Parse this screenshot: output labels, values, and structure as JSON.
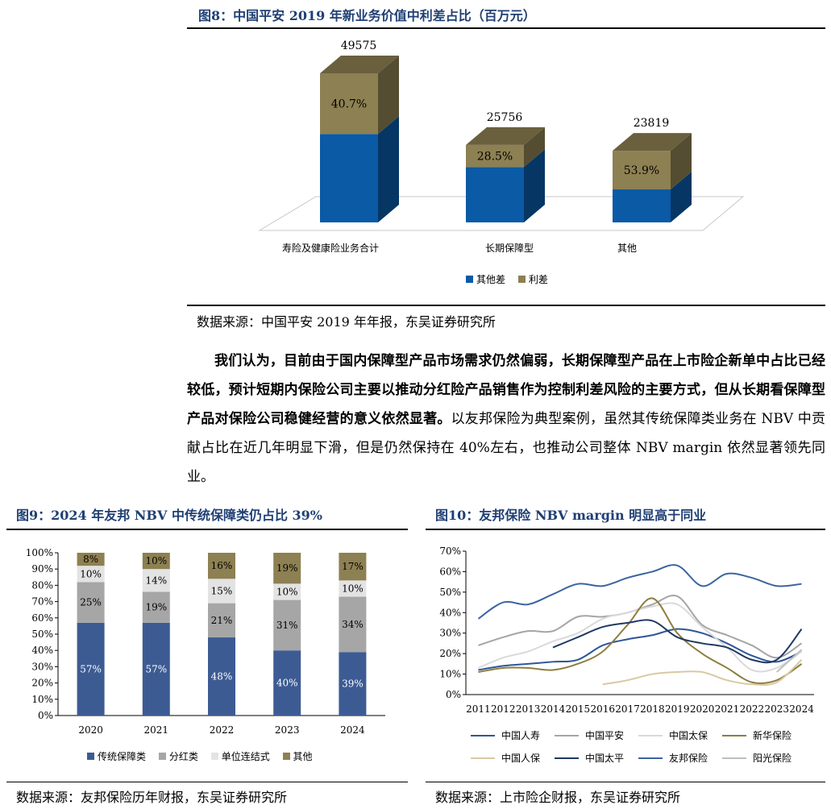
{
  "fig8": {
    "title": "图8：中国平安 2019 年新业务价值中利差占比（百万元）",
    "source": "数据来源：中国平安 2019 年年报，东吴证券研究所",
    "chart_data": {
      "type": "bar",
      "stacked": true,
      "three_d": true,
      "categories": [
        "寿险及健康险业务合计",
        "长期保障型",
        "其他"
      ],
      "totals": [
        49575,
        25756,
        23819
      ],
      "total_labels": [
        "49575",
        "25756",
        "23819"
      ],
      "series": [
        {
          "name": "其他差",
          "values": [
            29403,
            18416,
            10981
          ],
          "color": "#0a5aa6"
        },
        {
          "name": "利差",
          "values": [
            20172,
            7340,
            12838
          ],
          "color": "#8d8052"
        }
      ],
      "spread_labels": [
        "40.7%",
        "28.5%",
        "53.9%"
      ],
      "legend": [
        "其他差",
        "利差"
      ],
      "legend_position": "bottom"
    }
  },
  "paragraph": {
    "bold": "我们认为，目前由于国内保障型产品市场需求仍然偏弱，长期保障型产品在上市险企新单中占比已经较低，预计短期内保险公司主要以推动分红险产品销售作为控制利差风险的主要方式，但从长期看保障型产品对保险公司稳健经营的意义依然显著。",
    "normal": "以友邦保险为典型案例，虽然其传统保障类业务在 NBV 中贡献占比在近几年明显下滑，但是仍然保持在 40%左右，也推动公司整体 NBV margin 依然显著领先同业。"
  },
  "fig9": {
    "title": "图9：2024 年友邦 NBV 中传统保障类仍占比 39%",
    "source": "数据来源：友邦保险历年财报，东吴证券研究所",
    "chart_data": {
      "type": "bar",
      "stacked": true,
      "percent": true,
      "categories": [
        "2020",
        "2021",
        "2022",
        "2023",
        "2024"
      ],
      "y_ticks": [
        "0%",
        "10%",
        "20%",
        "30%",
        "40%",
        "50%",
        "60%",
        "70%",
        "80%",
        "90%",
        "100%"
      ],
      "ylim": [
        0,
        100
      ],
      "series": [
        {
          "name": "传统保障类",
          "values": [
            57,
            57,
            48,
            40,
            39
          ],
          "labels": [
            "57%",
            "57%",
            "48%",
            "40%",
            "39%"
          ],
          "color": "#3d5b93"
        },
        {
          "name": "分红类",
          "values": [
            25,
            19,
            21,
            31,
            34
          ],
          "labels": [
            "25%",
            "19%",
            "21%",
            "31%",
            "34%"
          ],
          "color": "#a6a6a6"
        },
        {
          "name": "单位连结式",
          "values": [
            10,
            14,
            15,
            10,
            10
          ],
          "labels": [
            "10%",
            "14%",
            "15%",
            "10%",
            "10%"
          ],
          "color": "#e3e3e3"
        },
        {
          "name": "其他",
          "values": [
            8,
            10,
            16,
            19,
            17
          ],
          "labels": [
            "8%",
            "10%",
            "16%",
            "19%",
            "17%"
          ],
          "color": "#8d8052"
        }
      ],
      "legend_position": "bottom"
    }
  },
  "fig10": {
    "title": "图10：友邦保险 NBV margin 明显高于同业",
    "source": "数据来源：上市险企财报，东吴证券研究所",
    "chart_data": {
      "type": "line",
      "x": [
        "2011",
        "2012",
        "2013",
        "2014",
        "2015",
        "2016",
        "2017",
        "2018",
        "2019",
        "2020",
        "2021",
        "2022",
        "2023",
        "2024"
      ],
      "y_ticks": [
        "0%",
        "10%",
        "20%",
        "30%",
        "40%",
        "50%",
        "60%",
        "70%"
      ],
      "ylim": [
        0,
        70
      ],
      "series": [
        {
          "name": "中国人寿",
          "color": "#2f5597",
          "values": [
            12,
            14,
            15,
            16,
            17,
            24,
            27,
            29,
            32,
            30,
            25,
            19,
            16,
            21
          ]
        },
        {
          "name": "中国平安",
          "color": "#a5a5a5",
          "values": [
            24,
            28,
            31,
            31,
            38,
            38,
            40,
            44,
            48,
            34,
            29,
            24,
            18,
            25
          ]
        },
        {
          "name": "中国太保",
          "color": "#d9d9d9",
          "values": [
            13,
            18,
            21,
            26,
            30,
            37,
            40,
            43,
            44,
            33,
            23,
            12,
            13,
            21
          ]
        },
        {
          "name": "新华保险",
          "color": "#8d7e3e",
          "values": [
            11,
            13,
            13,
            12,
            15,
            21,
            34,
            47,
            30,
            20,
            13,
            6,
            7,
            15
          ]
        },
        {
          "name": "中国人保",
          "color": "#d9c9a3",
          "values": [
            null,
            null,
            null,
            null,
            null,
            5,
            7,
            10,
            11,
            11,
            7,
            5,
            6,
            17
          ]
        },
        {
          "name": "中国太平",
          "color": "#1f3864",
          "values": [
            null,
            null,
            null,
            23,
            28,
            33,
            35,
            36,
            28,
            25,
            23,
            17,
            17,
            32
          ]
        },
        {
          "name": "友邦保险",
          "color": "#3c64a0",
          "values": [
            37,
            45,
            44,
            49,
            54,
            53,
            57,
            60,
            63,
            53,
            59,
            57,
            53,
            54
          ]
        },
        {
          "name": "阳光保险",
          "color": "#bfbfbf",
          "values": [
            null,
            null,
            null,
            null,
            null,
            null,
            null,
            null,
            null,
            null,
            null,
            null,
            11,
            22
          ]
        }
      ],
      "legend_position": "bottom"
    }
  }
}
